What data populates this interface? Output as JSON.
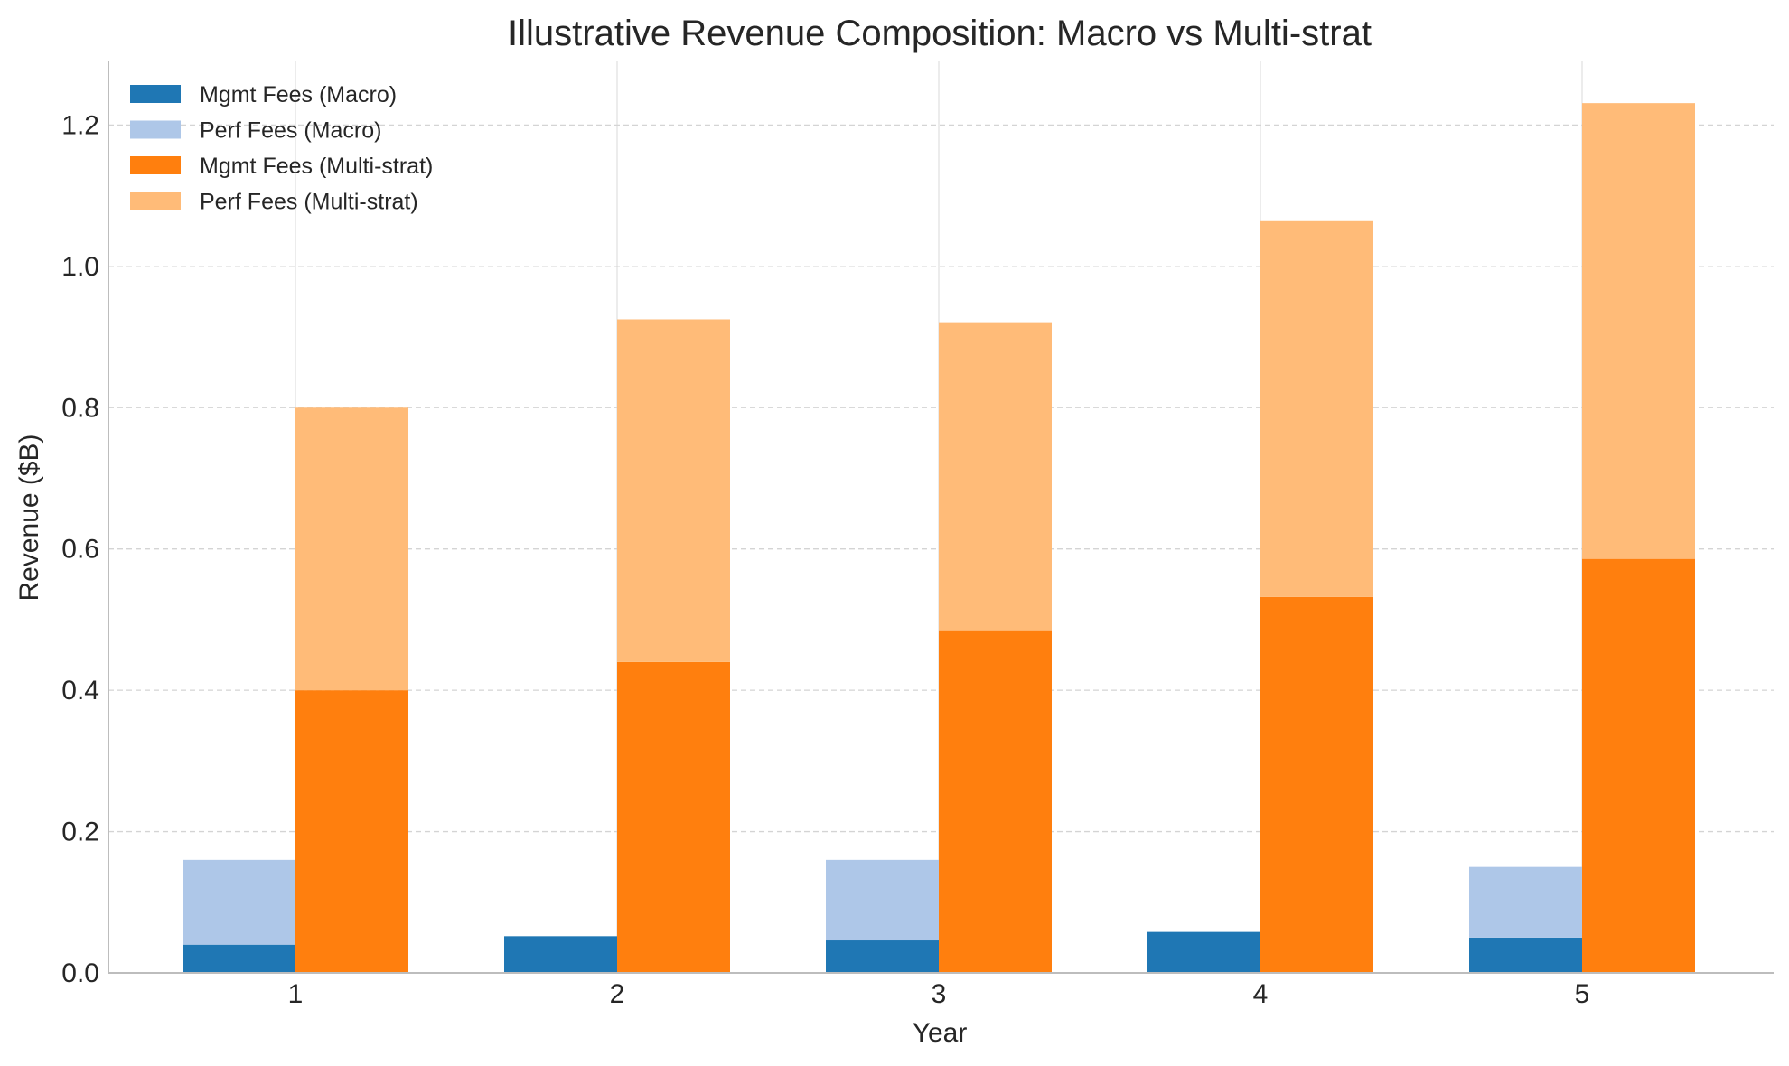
{
  "chart_data": {
    "type": "bar",
    "stacked": true,
    "grouped": true,
    "title": "Illustrative Revenue Composition: Macro vs Multi-strat",
    "xlabel": "Year",
    "ylabel": "Revenue ($B)",
    "categories": [
      "1",
      "2",
      "3",
      "4",
      "5"
    ],
    "ylim": [
      0,
      1.29
    ],
    "yticks": [
      "0.0",
      "0.2",
      "0.4",
      "0.6",
      "0.8",
      "1.0",
      "1.2"
    ],
    "grid": "y-dashed",
    "legend_position": "top-left",
    "groups": [
      {
        "name": "Macro",
        "series": [
          {
            "name": "Mgmt Fees (Macro)",
            "color": "#1f77b4",
            "values": [
              0.04,
              0.052,
              0.046,
              0.058,
              0.05
            ]
          },
          {
            "name": "Perf Fees (Macro)",
            "color": "#aec7e8",
            "values": [
              0.12,
              0.0,
              0.114,
              0.0,
              0.1
            ]
          }
        ]
      },
      {
        "name": "Multi-strat",
        "series": [
          {
            "name": "Mgmt Fees (Multi-strat)",
            "color": "#ff7f0e",
            "values": [
              0.4,
              0.44,
              0.485,
              0.532,
              0.586
            ]
          },
          {
            "name": "Perf Fees (Multi-strat)",
            "color": "#ffbb78",
            "values": [
              0.4,
              0.485,
              0.436,
              0.532,
              0.645
            ]
          }
        ]
      }
    ]
  }
}
